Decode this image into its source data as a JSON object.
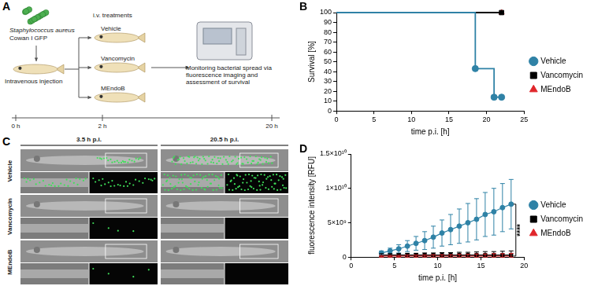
{
  "panel_labels": [
    "A",
    "B",
    "C",
    "D"
  ],
  "schematic": {
    "bacteria": "Staphylococcus aureus",
    "strain": "Cowan I GFP",
    "injection": "Intravenous injection",
    "treatment_title": "i.v. treatments",
    "treatments": [
      "Vehicle",
      "Vancomycin",
      "MEndoB"
    ],
    "readout": "Monitoring bacterial spread via fluorescence imaging and assessment of survival",
    "timeline": [
      "0 h",
      "2 h",
      "20 h"
    ]
  },
  "images": {
    "columns": [
      "3.5 h p.i.",
      "20.5 h p.i."
    ],
    "rows": [
      "Vehicle",
      "Vancomycin",
      "MEndoB"
    ]
  },
  "chart_data": [
    {
      "type": "line",
      "x_label": "time p.i. [h]",
      "y_label": "Survival [%]",
      "xlim": [
        0,
        25
      ],
      "xticks": [
        0,
        5,
        10,
        15,
        20,
        25
      ],
      "ylim": [
        0,
        100
      ],
      "yticks": [
        0,
        10,
        20,
        30,
        40,
        50,
        60,
        70,
        80,
        90,
        100
      ],
      "grid": false,
      "legend": "right",
      "series": [
        {
          "name": "Vehicle",
          "color": "#2f82a6",
          "marker": "circle",
          "line_style": "steps",
          "x": [
            0,
            18.5,
            21,
            22
          ],
          "values": [
            100,
            43,
            14,
            14
          ]
        },
        {
          "name": "Vancomycin",
          "color": "#000000",
          "marker": "square",
          "line_style": "steps",
          "x": [
            0,
            22
          ],
          "values": [
            100,
            100
          ]
        },
        {
          "name": "MEndoB",
          "color": "#e0262b",
          "marker": "triangle",
          "line_style": "steps",
          "x": [
            0,
            22
          ],
          "values": [
            100,
            100
          ]
        }
      ]
    },
    {
      "type": "line",
      "x_label": "time p.i. [h]",
      "y_label": "fluorescence intensity [RFU]",
      "xlim": [
        0,
        20
      ],
      "xticks": [
        0,
        5,
        10,
        15,
        20
      ],
      "ylim": [
        0,
        15000000000
      ],
      "yticks": [
        0,
        {
          "value": 5000000000,
          "label": "5×10⁹"
        },
        {
          "value": 10000000000,
          "label": "1×10¹⁰"
        },
        {
          "value": 15000000000,
          "label": "1.5×10¹⁰"
        }
      ],
      "grid": false,
      "legend": "right",
      "annotations": [
        "****"
      ],
      "x": [
        3.5,
        4.5,
        5.5,
        6.5,
        7.5,
        8.5,
        9.5,
        10.5,
        11.5,
        12.5,
        13.5,
        14.5,
        15.5,
        16.5,
        17.5,
        18.5
      ],
      "series": [
        {
          "name": "Vehicle",
          "color": "#2f82a6",
          "marker": "circle",
          "line_style": "solid",
          "values": [
            600000000,
            900000000,
            1200000000,
            1600000000,
            2000000000,
            2400000000,
            2900000000,
            3500000000,
            4000000000,
            4500000000,
            5000000000,
            5500000000,
            6200000000,
            6600000000,
            7200000000,
            7700000000
          ],
          "errors": [
            300000000,
            400000000,
            600000000,
            800000000,
            1000000000,
            1300000000,
            1600000000,
            1900000000,
            2200000000,
            2500000000,
            2800000000,
            3000000000,
            3200000000,
            3400000000,
            3500000000,
            3600000000
          ]
        },
        {
          "name": "Vancomycin",
          "color": "#000000",
          "marker": "square",
          "line_style": "solid",
          "values": [
            300000000,
            300000000,
            300000000,
            300000000,
            300000000,
            300000000,
            300000000,
            300000000,
            300000000,
            300000000,
            300000000,
            300000000,
            300000000,
            300000000,
            300000000,
            300000000
          ],
          "errors": [
            200000000,
            200000000,
            200000000,
            250000000,
            250000000,
            300000000,
            300000000,
            350000000,
            350000000,
            400000000,
            400000000,
            450000000,
            500000000,
            500000000,
            550000000,
            600000000
          ]
        },
        {
          "name": "MEndoB",
          "color": "#e0262b",
          "marker": "triangle",
          "line_style": "solid",
          "values": [
            150000000,
            150000000,
            150000000,
            150000000,
            150000000,
            150000000,
            150000000,
            150000000,
            150000000,
            150000000,
            150000000,
            150000000,
            150000000,
            150000000,
            150000000,
            150000000
          ],
          "errors": [
            100000000,
            100000000,
            100000000,
            150000000,
            150000000,
            150000000,
            200000000,
            200000000,
            200000000,
            250000000,
            250000000,
            300000000,
            300000000,
            350000000,
            350000000,
            400000000
          ]
        }
      ]
    }
  ]
}
